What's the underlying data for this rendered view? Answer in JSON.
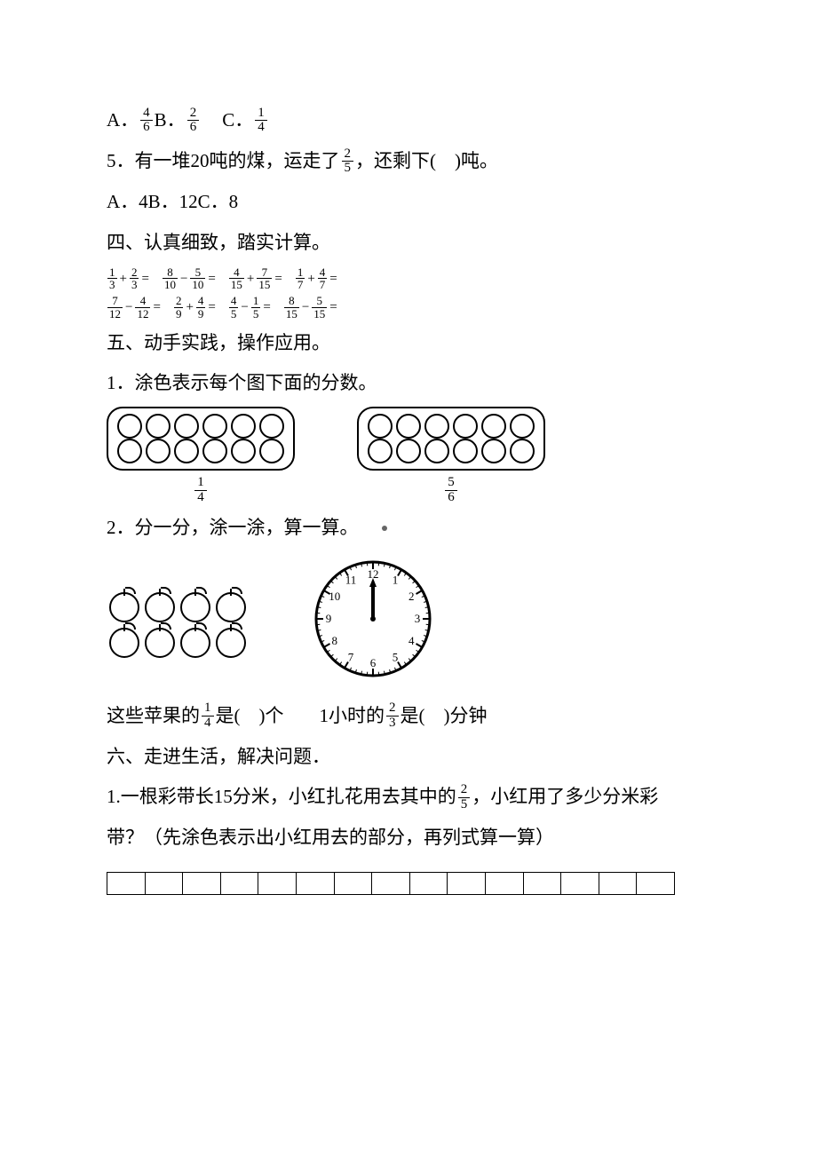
{
  "q4_options": {
    "A_label": "A．",
    "A_num": "4",
    "A_den": "6",
    "B_label": "B．",
    "B_num": "2",
    "B_den": "6",
    "C_label": "C．",
    "C_num": "1",
    "C_den": "4"
  },
  "q5": {
    "num_label": "5．",
    "text_before": "有一堆20吨的煤，运走了",
    "frac_num": "2",
    "frac_den": "5",
    "text_after": "，还剩下(　)吨。",
    "opts": "A．4B．12C．8"
  },
  "sec4": {
    "heading": "四、认真细致，踏实计算。",
    "row1": [
      {
        "a_n": "1",
        "a_d": "3",
        "op": "+",
        "b_n": "2",
        "b_d": "3"
      },
      {
        "a_n": "8",
        "a_d": "10",
        "op": "−",
        "b_n": "5",
        "b_d": "10"
      },
      {
        "a_n": "4",
        "a_d": "15",
        "op": "+",
        "b_n": "7",
        "b_d": "15"
      },
      {
        "a_n": "1",
        "a_d": "7",
        "op": "+",
        "b_n": "4",
        "b_d": "7"
      }
    ],
    "row2": [
      {
        "a_n": "7",
        "a_d": "12",
        "op": "−",
        "b_n": "4",
        "b_d": "12"
      },
      {
        "a_n": "2",
        "a_d": "9",
        "op": "+",
        "b_n": "4",
        "b_d": "9"
      },
      {
        "a_n": "4",
        "a_d": "5",
        "op": "−",
        "b_n": "1",
        "b_d": "5"
      },
      {
        "a_n": "8",
        "a_d": "15",
        "op": "−",
        "b_n": "5",
        "b_d": "15"
      }
    ]
  },
  "sec5": {
    "heading": "五、动手实践，操作应用。",
    "q1": "1．涂色表示每个图下面的分数。",
    "box1": {
      "cols": 6,
      "rows": 2,
      "frac_n": "1",
      "frac_d": "4"
    },
    "box2": {
      "cols": 6,
      "rows": 2,
      "frac_n": "5",
      "frac_d": "6"
    },
    "q2": "2．分一分，涂一涂，算一算。",
    "apples": {
      "cols": 4,
      "rows": 2
    },
    "clock": {
      "hours": [
        "12",
        "1",
        "2",
        "3",
        "4",
        "5",
        "6",
        "7",
        "8",
        "9",
        "10",
        "11"
      ]
    },
    "q2a_before": "这些苹果的",
    "q2a_n": "1",
    "q2a_d": "4",
    "q2a_after": "是(　)个",
    "q2b_before": "1小时的",
    "q2b_n": "2",
    "q2b_d": "3",
    "q2b_after": "是(　)分钟"
  },
  "sec6": {
    "heading": "六、走进生活，解决问题．",
    "q1_a": "1.一根彩带长15分米，小红扎花用去其中的",
    "q1_n": "2",
    "q1_d": "5",
    "q1_b": "，小红用了多少分米彩",
    "q1_c": "带？（先涂色表示出小红用去的部分，再列式算一算）",
    "strip_cells": 15
  }
}
